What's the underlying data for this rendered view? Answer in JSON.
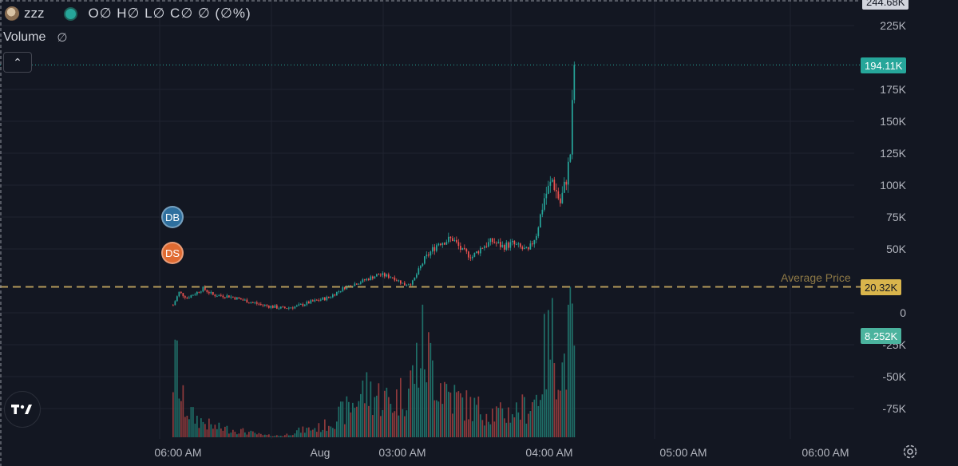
{
  "legend": {
    "symbol": "zzz",
    "ohlc_text": "O∅ H∅ L∅ C∅ ∅ (∅%)",
    "volume_label": "Volume",
    "volume_value": "∅"
  },
  "markers": [
    {
      "label": "DB",
      "color": "#2e6f9e"
    },
    {
      "label": "DS",
      "color": "#e06b32"
    }
  ],
  "price_tags": {
    "top_partial": "244.68K",
    "last": "194.11K",
    "average": "20.32K",
    "volume": "8.252K"
  },
  "average_price_label": "Average Price",
  "colors": {
    "background": "#131722",
    "up": "#26a69a",
    "down": "#ef5350",
    "volume_up": "#1f6f68",
    "volume_down": "#8f3a3c",
    "average_line": "#b39a5a",
    "last_tag": "#26a69a",
    "average_tag": "#d9b54c",
    "volume_tag": "#4bb39e"
  },
  "chart_data": {
    "type": "candlestick",
    "y_axis": {
      "ticks": [
        "225K",
        "175K",
        "150K",
        "125K",
        "100K",
        "75K",
        "50K",
        "0",
        "-25K",
        "-50K",
        "-75K"
      ],
      "tick_values": [
        225000,
        175000,
        150000,
        125000,
        100000,
        75000,
        50000,
        0,
        -25000,
        -50000,
        -75000
      ],
      "range": [
        -95000,
        245000
      ]
    },
    "x_axis": {
      "ticks": [
        "06:00 AM",
        "Aug",
        "03:00 AM",
        "04:00 AM",
        "05:00 AM",
        "06:00 AM"
      ]
    },
    "average_price": 20320,
    "last_price": 194110,
    "last_volume": 8252,
    "trend_anchors": [
      [
        0,
        6000
      ],
      [
        3,
        16000
      ],
      [
        7,
        12000
      ],
      [
        12,
        16000
      ],
      [
        15,
        19000
      ],
      [
        20,
        14000
      ],
      [
        28,
        13000
      ],
      [
        35,
        10000
      ],
      [
        45,
        6000
      ],
      [
        55,
        3500
      ],
      [
        62,
        5000
      ],
      [
        68,
        8000
      ],
      [
        78,
        12000
      ],
      [
        86,
        20000
      ],
      [
        95,
        25000
      ],
      [
        103,
        30000
      ],
      [
        110,
        28000
      ],
      [
        116,
        22000
      ],
      [
        120,
        24000
      ],
      [
        126,
        42000
      ],
      [
        133,
        55000
      ],
      [
        140,
        58000
      ],
      [
        145,
        48000
      ],
      [
        150,
        44000
      ],
      [
        155,
        52000
      ],
      [
        160,
        56000
      ],
      [
        165,
        52000
      ],
      [
        170,
        54000
      ],
      [
        175,
        50000
      ],
      [
        178,
        48000
      ],
      [
        182,
        62000
      ],
      [
        186,
        90000
      ],
      [
        190,
        104000
      ],
      [
        194,
        86000
      ],
      [
        197,
        105000
      ],
      [
        199,
        125000
      ],
      [
        201,
        194110
      ]
    ],
    "candle_count": 202,
    "volume_anchors": [
      [
        0,
        62000
      ],
      [
        2,
        72000
      ],
      [
        4,
        36000
      ],
      [
        10,
        20000
      ],
      [
        20,
        10000
      ],
      [
        35,
        6000
      ],
      [
        45,
        2000
      ],
      [
        55,
        1500
      ],
      [
        62,
        6000
      ],
      [
        75,
        10000
      ],
      [
        88,
        28000
      ],
      [
        96,
        46000
      ],
      [
        110,
        34000
      ],
      [
        118,
        48000
      ],
      [
        125,
        88000
      ],
      [
        133,
        56000
      ],
      [
        140,
        40000
      ],
      [
        148,
        30000
      ],
      [
        156,
        26000
      ],
      [
        165,
        22000
      ],
      [
        172,
        26000
      ],
      [
        178,
        30000
      ],
      [
        183,
        42000
      ],
      [
        186,
        78000
      ],
      [
        190,
        96000
      ],
      [
        195,
        64000
      ],
      [
        199,
        100000
      ],
      [
        201,
        98000
      ]
    ]
  }
}
